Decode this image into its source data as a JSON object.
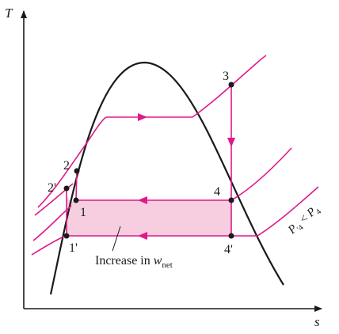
{
  "axes": {
    "x_label": "s",
    "y_label": "T"
  },
  "state_points": {
    "p1": "1",
    "p1_prime": "1'",
    "p2": "2",
    "p2_prime": "2'",
    "p3": "3",
    "p4": "4",
    "p4_prime": "4'"
  },
  "annotations": {
    "increase_prefix": "Increase in ",
    "increase_var": "w",
    "increase_sub": "net",
    "pressure_P": "P",
    "pressure_prime_sub": "'4",
    "pressure_op": " < ",
    "pressure_sub": "4"
  },
  "colors": {
    "process_line": "#e0198a",
    "shaded_region": "#f7cde0",
    "dome": "#1a1a1a",
    "axes": "#1a1a1a"
  },
  "icons": {
    "arrow_heads": "triangle-arrow"
  }
}
